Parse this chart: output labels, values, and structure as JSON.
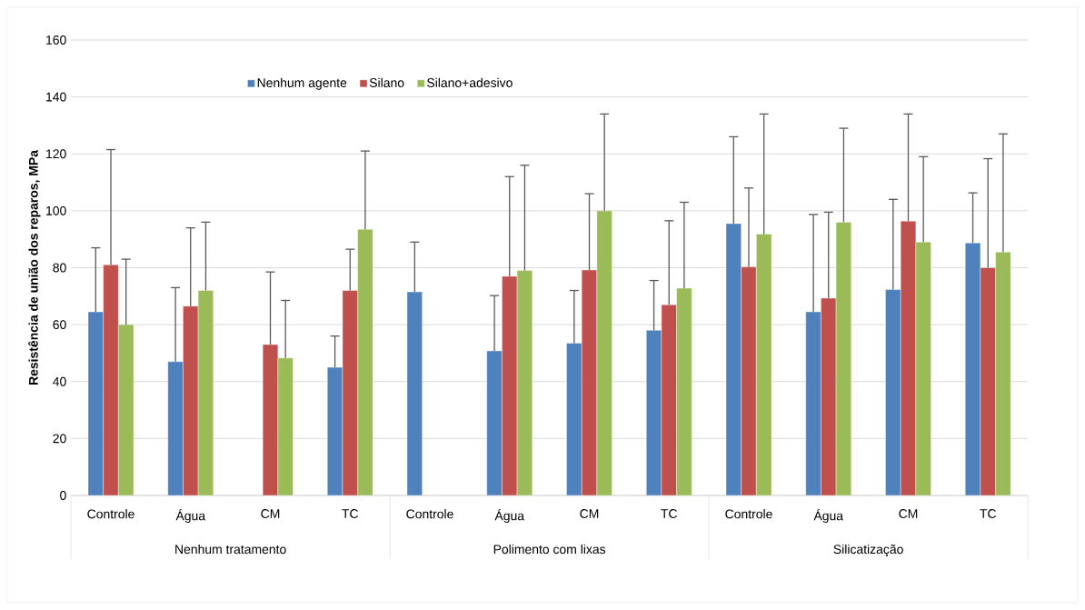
{
  "chart_data": {
    "type": "bar",
    "ylabel": "Resistência de união dos reparos, MPa",
    "categories": [
      "Controle",
      "Água",
      "CM",
      "TC",
      "Controle",
      "Água",
      "CM",
      "TC",
      "Controle",
      "Água",
      "CM",
      "TC"
    ],
    "annotations": [
      "Nenhum tratamento",
      "Polimento com lixas",
      "Silicatização"
    ],
    "series": [
      {
        "name": "Nenhum agente",
        "color": "#4f81bd",
        "values": [
          64.5,
          47,
          null,
          45,
          71.5,
          50.8,
          53.5,
          58,
          95.5,
          64.5,
          72.3,
          88.7
        ],
        "errors": [
          [
            64.5,
            87
          ],
          [
            47,
            73
          ],
          null,
          [
            45,
            56
          ],
          [
            71.5,
            89
          ],
          [
            50.8,
            70.2
          ],
          [
            53.5,
            72
          ],
          [
            58,
            75.5
          ],
          [
            95.5,
            126
          ],
          [
            64.5,
            98.7
          ],
          [
            72.3,
            104
          ],
          [
            88.7,
            106.3
          ]
        ]
      },
      {
        "name": "Silano",
        "color": "#c0504d",
        "values": [
          81,
          66.5,
          53,
          72,
          null,
          77,
          79.2,
          67,
          80.3,
          69.3,
          96.4,
          80
        ],
        "errors": [
          [
            81,
            121.5
          ],
          [
            66.5,
            94
          ],
          [
            53,
            78.5
          ],
          [
            72,
            86.5
          ],
          null,
          [
            77,
            112
          ],
          [
            79.2,
            106
          ],
          [
            67,
            96.5
          ],
          [
            80.3,
            108
          ],
          [
            69.3,
            99.5
          ],
          [
            96.4,
            134
          ],
          [
            80,
            118.3
          ]
        ]
      },
      {
        "name": "Silano+adesivo",
        "color": "#9bbb59",
        "values": [
          60,
          72,
          48.3,
          93.5,
          null,
          79,
          100,
          72.8,
          91.8,
          96,
          89,
          85.5
        ],
        "errors": [
          [
            60,
            83
          ],
          [
            72,
            96
          ],
          [
            48.3,
            68.5
          ],
          [
            93.5,
            121
          ],
          null,
          [
            79,
            116
          ],
          [
            100,
            134
          ],
          [
            72.8,
            103
          ],
          [
            91.8,
            134
          ],
          [
            96,
            129
          ],
          [
            89,
            119
          ],
          [
            85.5,
            127
          ]
        ]
      }
    ],
    "ylim": [
      0,
      160
    ],
    "yticks": [
      0,
      20,
      40,
      60,
      80,
      100,
      120,
      140,
      160
    ],
    "grid": "y",
    "legend": "top"
  }
}
